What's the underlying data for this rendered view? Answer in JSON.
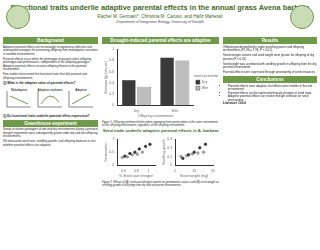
{
  "header": {
    "title": "Functional traits underlie adaptive parental effects in the annual grass Avena barbata",
    "authors": "Rachel M. Germain*, Christina M. Caruso, and Hafiz Maherali",
    "affiliation": "Department of Integrative Biology, University of Guelph"
  },
  "left": {
    "heading": "Background",
    "paragraphs": [
      "Adaptive parental effects are increasingly recognized as effective and widespread strategies for preventing offspring from maladaptive outcomes in variable environments.",
      "Parental effects occur when the phenotype of parents alters offspring phenotype and performance, independent of the offspring genotype. Adaptive parental effects increase offspring fitness in the parental environment.",
      "Few studies have tested the functional traits that link parental and offspring environments."
    ],
    "question1": "Q) What is the adaptive value of parental effects?",
    "diagram_labels": [
      "Maladaptive",
      "Adaptive nonlinear",
      "Adaptive"
    ],
    "question2": "Q) Do functional traits underlie parental effect expression?",
    "heading2": "Greenhouse experiment",
    "paragraphs2": [
      "Seeds of eleven genotypes of wet and dry environments during a previous drought experiment were subsequently grown under dry and wet offspring environments.",
      "We measured seed traits, seedling growth, and offspring biomass to test whether parental effects are adaptive."
    ]
  },
  "middle": {
    "heading": "Drought-induced parental effects are adaptive",
    "caption1": "Figure 1. Offspring performed better when originating from parent plants in the same environment as the offspring environment, regardless of the offspring environment.",
    "heading2": "Seed trade underlie adaptive parental effects in A. barbata",
    "caption2": "Figure 2. Effects of (A) seed coat nitrogen content on germination success and (B) seed weight on seedling growth of offspring from dry and wet parent environments."
  },
  "right": {
    "heading": "Results",
    "paragraphs": [
      "Offspring performed better under matching parent and offspring environments (F1,96 = 7.93, P < 0.01).",
      "Seed nitrogen content and seed weight were greater for offspring of dry parents (P < 0.05).",
      "Seed weight was correlated with seedling growth in offspring from the dry parental environment.",
      "Parental effects were expressed through provisioning of seed resources."
    ],
    "heading2": "Conclusions",
    "bullets": [
      "Parental effects were adaptive, but effects were smaller in the wet environment.",
      "Parental effects can be expressed through changes in seed traits.",
      "Adaptive parental effects can evolve through selection on seed provisioning."
    ],
    "literature": "Literature Cited"
  },
  "chart_data": [
    {
      "type": "bar",
      "categories": [
        "Dry",
        "Wet"
      ],
      "x_label": "Offspring environment",
      "y_label": "Biomass (g) [dry wt.]",
      "legend": "right",
      "legend_title": "Parent environment",
      "ylim": [
        0,
        1
      ],
      "yticks": [
        0,
        0.2,
        0.4,
        0.6,
        0.8,
        1
      ],
      "grid": false,
      "series": [
        {
          "name": "Dry",
          "color": "#3a3a3a",
          "values": [
            0.45,
            0.85
          ]
        },
        {
          "name": "Wet",
          "color": "#bdbdbd",
          "values": [
            0.33,
            0.8
          ]
        }
      ]
    },
    {
      "type": "scatter",
      "x_label": "% Seed coat nitrogen",
      "y_label": "Germination",
      "xlim": [
        0.5,
        1.1
      ],
      "xticks": [
        0.6,
        0.8,
        1
      ],
      "ylim": [
        0,
        1
      ],
      "yticks": [
        0,
        0.5,
        1
      ],
      "series": [
        {
          "name": "Dry",
          "color": "#3a3a3a",
          "x": [
            0.62,
            0.7,
            0.78,
            0.85,
            0.95,
            1.02
          ],
          "values": [
            0.35,
            0.45,
            0.5,
            0.62,
            0.72,
            0.8
          ]
        },
        {
          "name": "Wet",
          "color": "#9a9a9a",
          "x": [
            0.58,
            0.66,
            0.74,
            0.82,
            0.9
          ],
          "values": [
            0.3,
            0.32,
            0.4,
            0.42,
            0.5
          ]
        }
      ]
    },
    {
      "type": "scatter",
      "x_label": "Seed weight (mg)",
      "y_label": "Seedling growth",
      "xlim": [
        5,
        25
      ],
      "xticks": [
        5,
        15,
        25
      ],
      "ylim": [
        0,
        0.3
      ],
      "yticks": [
        0,
        0.1,
        0.2,
        0.3
      ],
      "series": [
        {
          "name": "Dry",
          "color": "#3a3a3a",
          "x": [
            9,
            12,
            15,
            18,
            21
          ],
          "values": [
            0.08,
            0.12,
            0.15,
            0.2,
            0.24
          ]
        },
        {
          "name": "Wet",
          "color": "#9a9a9a",
          "x": [
            8,
            11,
            14,
            17,
            20
          ],
          "values": [
            0.1,
            0.11,
            0.13,
            0.14,
            0.15
          ]
        }
      ]
    }
  ]
}
